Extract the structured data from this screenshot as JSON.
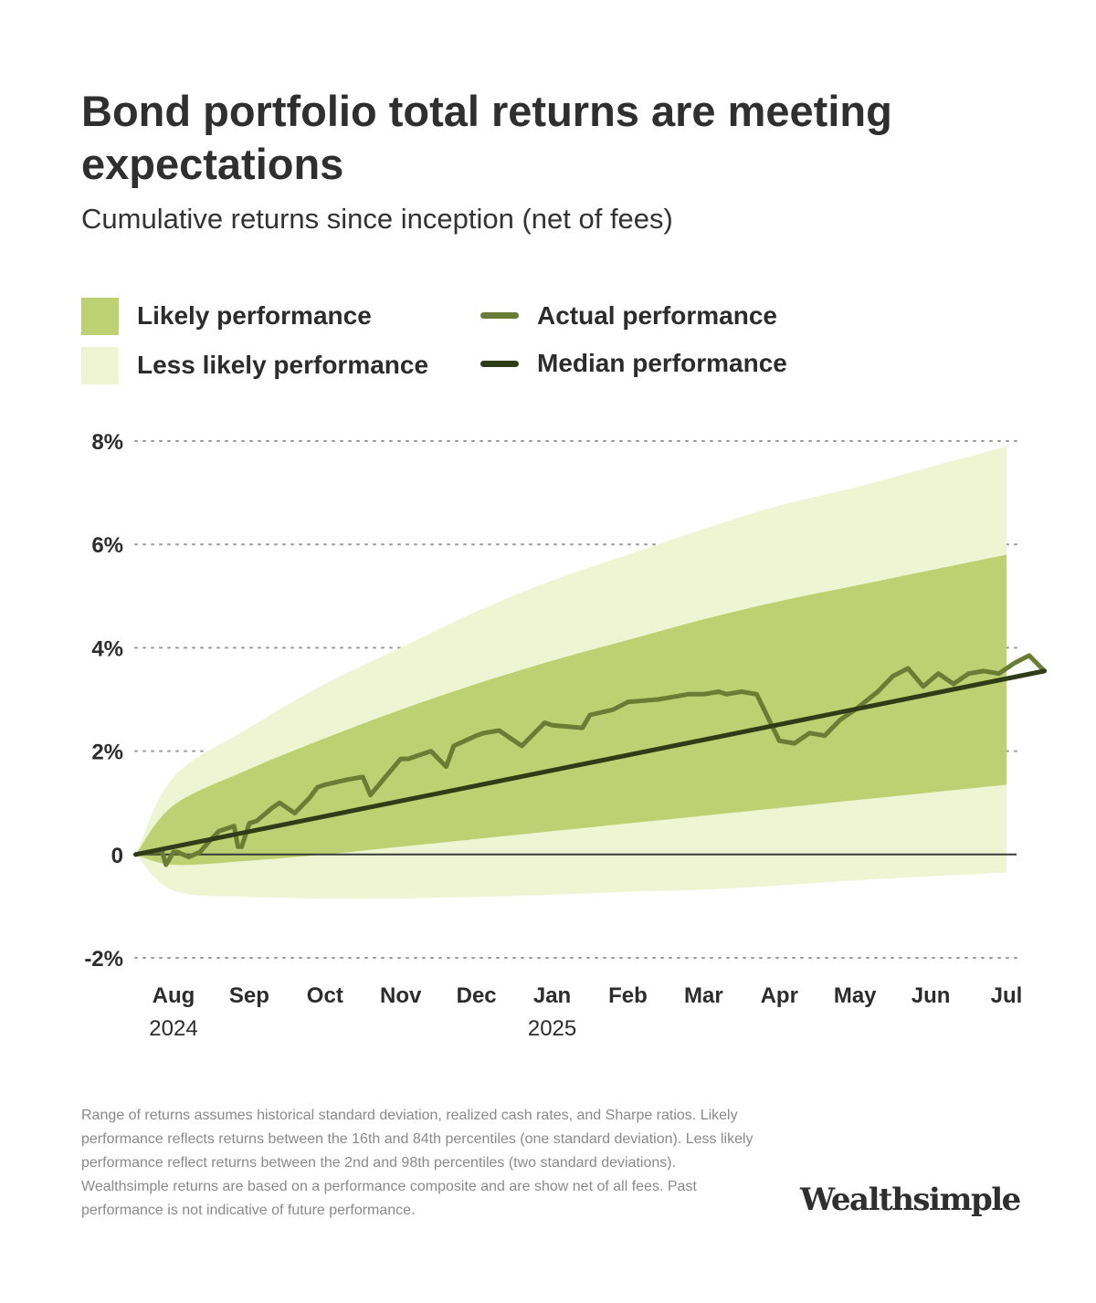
{
  "header": {
    "title": "Bond portfolio total returns are meeting expectations",
    "subtitle": "Cumulative returns since inception (net of fees)"
  },
  "legend": {
    "likely": "Likely performance",
    "less_likely": "Less likely performance",
    "actual": "Actual performance",
    "median": "Median performance"
  },
  "colors": {
    "likely_band": "#bdd072",
    "less_likely_band": "#eff5d2",
    "actual_line": "#6b7d34",
    "median_line": "#303b18",
    "grid": "#9a9a9a"
  },
  "chart_data": {
    "type": "area",
    "y_ticks": [
      "8%",
      "6%",
      "4%",
      "2%",
      "0",
      "-2%"
    ],
    "y_tick_values": [
      8,
      6,
      4,
      2,
      0,
      -2
    ],
    "ylim": [
      -2,
      8
    ],
    "x_ticks": [
      "Aug",
      "Sep",
      "Oct",
      "Nov",
      "Dec",
      "Jan",
      "Feb",
      "Mar",
      "Apr",
      "May",
      "Jun",
      "Jul"
    ],
    "x_years": [
      {
        "month": "Aug",
        "label": "2024"
      },
      {
        "month": "Jan",
        "label": "2025"
      }
    ],
    "grid": "dotted horizontal",
    "legend_placement": "top-left",
    "x_months": [
      -0.5,
      0,
      1,
      2,
      3,
      4,
      5,
      6,
      7,
      8,
      9,
      10,
      11
    ],
    "bands": {
      "likely_upper": [
        0,
        0.95,
        1.65,
        2.25,
        2.8,
        3.3,
        3.75,
        4.15,
        4.55,
        4.9,
        5.2,
        5.5,
        5.8
      ],
      "likely_lower": [
        0,
        -0.2,
        -0.12,
        0.0,
        0.15,
        0.3,
        0.45,
        0.6,
        0.75,
        0.9,
        1.05,
        1.2,
        1.35
      ],
      "less_likely_upper": [
        0,
        1.5,
        2.45,
        3.3,
        4.0,
        4.7,
        5.3,
        5.8,
        6.3,
        6.75,
        7.1,
        7.5,
        7.9
      ],
      "less_likely_lower": [
        0,
        -0.7,
        -0.82,
        -0.85,
        -0.85,
        -0.82,
        -0.78,
        -0.72,
        -0.68,
        -0.6,
        -0.5,
        -0.42,
        -0.35
      ]
    },
    "median": {
      "x": [
        -0.5,
        11.5
      ],
      "y": [
        0,
        3.55
      ]
    },
    "actual": {
      "x": [
        -0.5,
        -0.3,
        -0.15,
        -0.1,
        0.0,
        0.05,
        0.2,
        0.35,
        0.5,
        0.6,
        0.8,
        0.85,
        0.9,
        1.0,
        1.1,
        1.3,
        1.4,
        1.6,
        1.8,
        1.9,
        2.0,
        2.3,
        2.5,
        2.6,
        2.8,
        3.0,
        3.1,
        3.2,
        3.4,
        3.6,
        3.7,
        4.0,
        4.1,
        4.3,
        4.6,
        4.9,
        5.0,
        5.4,
        5.5,
        5.8,
        6.0,
        6.4,
        6.6,
        6.8,
        7.0,
        7.2,
        7.3,
        7.5,
        7.7,
        7.8,
        8.0,
        8.2,
        8.4,
        8.6,
        8.8,
        9.0,
        9.3,
        9.5,
        9.7,
        9.9,
        10.1,
        10.3,
        10.5,
        10.7,
        10.9,
        11.1,
        11.3,
        11.5
      ],
      "y": [
        0,
        0.05,
        0.05,
        -0.2,
        0.05,
        0.05,
        -0.05,
        0.05,
        0.3,
        0.45,
        0.55,
        0.15,
        0.15,
        0.6,
        0.65,
        0.9,
        1.0,
        0.8,
        1.1,
        1.3,
        1.35,
        1.45,
        1.5,
        1.15,
        1.5,
        1.85,
        1.85,
        1.9,
        2.0,
        1.7,
        2.1,
        2.3,
        2.35,
        2.4,
        2.1,
        2.55,
        2.5,
        2.45,
        2.7,
        2.8,
        2.95,
        3.0,
        3.05,
        3.1,
        3.1,
        3.15,
        3.1,
        3.15,
        3.1,
        2.8,
        2.2,
        2.15,
        2.35,
        2.3,
        2.6,
        2.8,
        3.15,
        3.45,
        3.6,
        3.25,
        3.5,
        3.3,
        3.5,
        3.55,
        3.5,
        3.7,
        3.85,
        3.55
      ]
    }
  }
}
